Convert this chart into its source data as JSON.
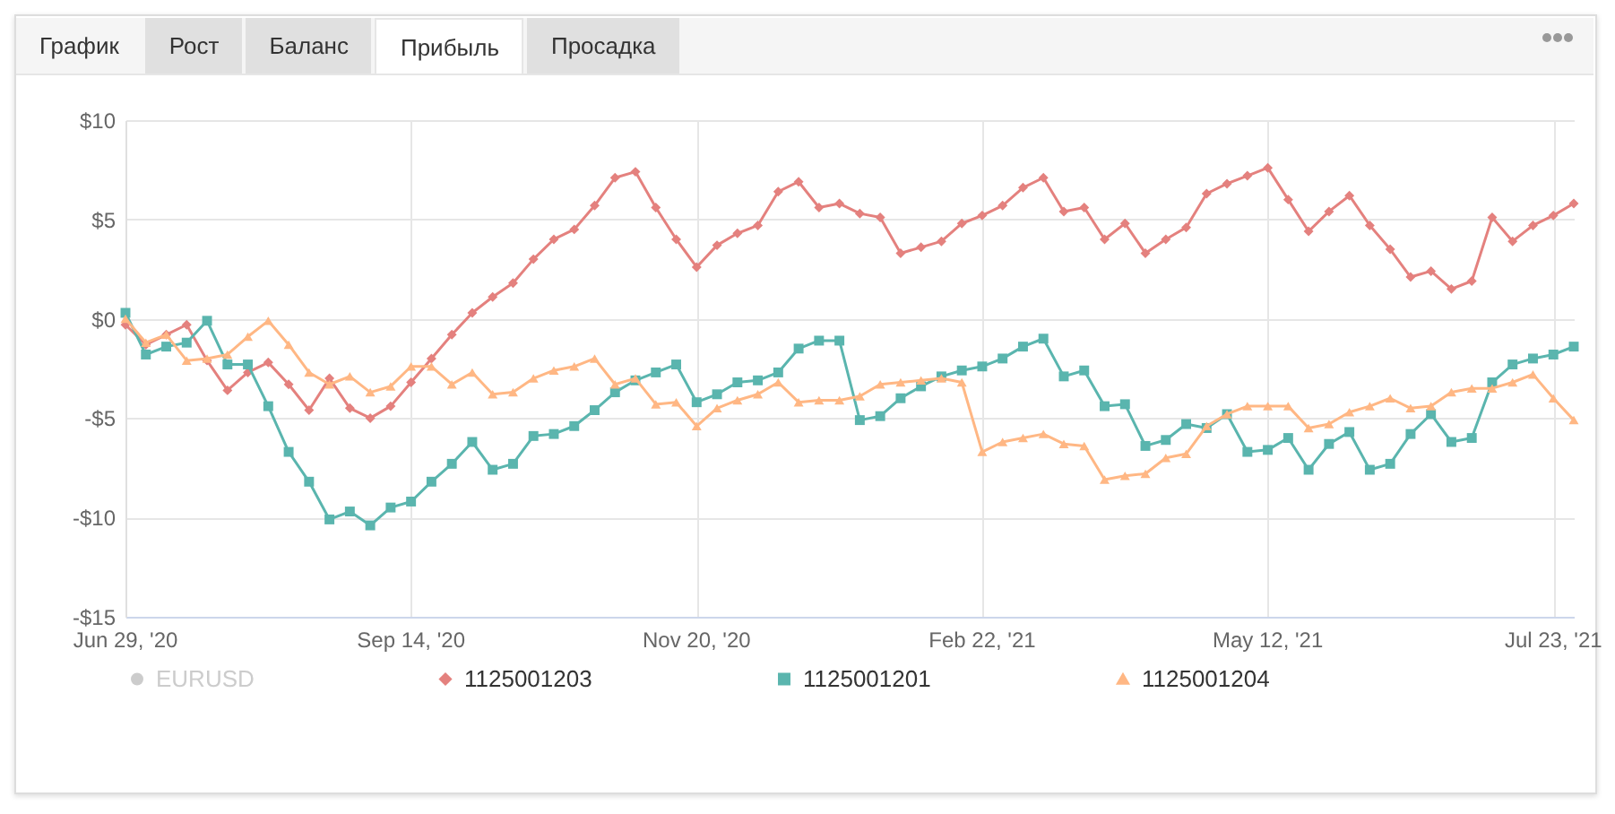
{
  "chart_data": {
    "type": "line",
    "annotations": [
      "График",
      "Рост",
      "Баланс",
      "Прибыль",
      "Просадка"
    ],
    "categories": [
      "Jun 29, '20",
      null,
      null,
      null,
      null,
      null,
      null,
      null,
      null,
      null,
      null,
      null,
      null,
      null,
      "Sep 14, '20",
      null,
      null,
      null,
      null,
      null,
      null,
      null,
      null,
      null,
      null,
      null,
      null,
      null,
      "Nov 20, '20",
      null,
      null,
      null,
      null,
      null,
      null,
      null,
      null,
      null,
      null,
      null,
      null,
      null,
      "Feb 22, '21",
      null,
      null,
      null,
      null,
      null,
      null,
      null,
      null,
      null,
      null,
      null,
      null,
      null,
      "May 12, '21",
      null,
      null,
      null,
      null,
      null,
      null,
      null,
      null,
      null,
      null,
      null,
      null,
      null,
      "Jul 23, '21",
      null
    ],
    "series": [
      {
        "name": "EURUSD",
        "color": "#cccccc",
        "marker": "circle",
        "values": [
          null,
          null,
          null,
          null,
          null,
          null,
          null,
          null,
          null,
          null,
          null,
          null,
          null,
          null,
          null,
          null,
          null,
          null,
          null,
          null,
          null,
          null,
          null,
          null,
          null,
          null,
          null,
          null,
          null,
          null,
          null,
          null,
          null,
          null,
          null,
          null,
          null,
          null,
          null,
          null,
          null,
          null,
          null,
          null,
          null,
          null,
          null,
          null,
          null,
          null,
          null,
          null,
          null,
          null,
          null,
          null,
          null,
          null,
          null,
          null,
          null,
          null,
          null,
          null,
          null,
          null,
          null,
          null,
          null,
          null,
          null,
          null
        ]
      },
      {
        "name": "1125001203",
        "color": "#e4817e",
        "marker": "diamond",
        "values": [
          -0.3,
          -1.3,
          -0.8,
          -0.3,
          -2.1,
          -3.6,
          -2.7,
          -2.2,
          -3.3,
          -4.6,
          -3.0,
          -4.5,
          -5.0,
          -4.4,
          -3.2,
          -2.0,
          -0.8,
          0.3,
          1.1,
          1.8,
          3.0,
          4.0,
          4.5,
          5.7,
          7.1,
          7.4,
          5.6,
          4.0,
          2.6,
          3.7,
          4.3,
          4.7,
          6.4,
          6.9,
          5.6,
          5.8,
          5.3,
          5.1,
          3.3,
          3.6,
          3.9,
          4.8,
          5.2,
          5.7,
          6.6,
          7.1,
          5.4,
          5.6,
          4.0,
          4.8,
          3.3,
          4.0,
          4.6,
          6.3,
          6.8,
          7.2,
          7.6,
          6.0,
          4.4,
          5.4,
          6.2,
          4.7,
          3.5,
          2.1,
          2.4,
          1.5,
          1.9,
          5.1,
          3.9,
          4.7,
          5.2,
          5.8
        ]
      },
      {
        "name": "1125001201",
        "color": "#5ab5ae",
        "marker": "square",
        "values": [
          0.3,
          -1.8,
          -1.4,
          -1.2,
          -0.1,
          -2.3,
          -2.3,
          -4.4,
          -6.7,
          -8.2,
          -10.1,
          -9.7,
          -10.4,
          -9.5,
          -9.2,
          -8.2,
          -7.3,
          -6.2,
          -7.6,
          -7.3,
          -5.9,
          -5.8,
          -5.4,
          -4.6,
          -3.7,
          -3.1,
          -2.7,
          -2.3,
          -4.2,
          -3.8,
          -3.2,
          -3.1,
          -2.7,
          -1.5,
          -1.1,
          -1.1,
          -5.1,
          -4.9,
          -4.0,
          -3.4,
          -2.9,
          -2.6,
          -2.4,
          -2.0,
          -1.4,
          -1.0,
          -2.9,
          -2.6,
          -4.4,
          -4.3,
          -6.4,
          -6.1,
          -5.3,
          -5.5,
          -4.8,
          -6.7,
          -6.6,
          -6.0,
          -7.6,
          -6.3,
          -5.7,
          -7.6,
          -7.3,
          -5.8,
          -4.8,
          -6.2,
          -6.0,
          -3.2,
          -2.3,
          -2.0,
          -1.8,
          -1.4
        ]
      },
      {
        "name": "1125001204",
        "color": "#ffb784",
        "marker": "triangle",
        "values": [
          0.0,
          -1.2,
          -0.8,
          -2.1,
          -2.0,
          -1.8,
          -0.9,
          -0.1,
          -1.3,
          -2.7,
          -3.3,
          -2.9,
          -3.7,
          -3.4,
          -2.4,
          -2.4,
          -3.3,
          -2.7,
          -3.8,
          -3.7,
          -3.0,
          -2.6,
          -2.4,
          -2.0,
          -3.3,
          -3.0,
          -4.3,
          -4.2,
          -5.4,
          -4.5,
          -4.1,
          -3.8,
          -3.2,
          -4.2,
          -4.1,
          -4.1,
          -3.9,
          -3.3,
          -3.2,
          -3.1,
          -3.0,
          -3.2,
          -6.7,
          -6.2,
          -6.0,
          -5.8,
          -6.3,
          -6.4,
          -8.1,
          -7.9,
          -7.8,
          -7.0,
          -6.8,
          -5.4,
          -4.8,
          -4.4,
          -4.4,
          -4.4,
          -5.5,
          -5.3,
          -4.7,
          -4.4,
          -4.0,
          -4.5,
          -4.4,
          -3.7,
          -3.5,
          -3.5,
          -3.2,
          -2.8,
          -4.0,
          -5.1
        ]
      }
    ],
    "ylim": [
      -15,
      10
    ],
    "yticks": [
      {
        "value": -15,
        "label": "-$15"
      },
      {
        "value": -10,
        "label": "-$10"
      },
      {
        "value": -5,
        "label": "-$5"
      },
      {
        "value": 0,
        "label": "$0"
      },
      {
        "value": 5,
        "label": "$5"
      },
      {
        "value": 10,
        "label": "$10"
      }
    ],
    "grid": true,
    "legend": "bottom",
    "line_style": "solid"
  }
}
